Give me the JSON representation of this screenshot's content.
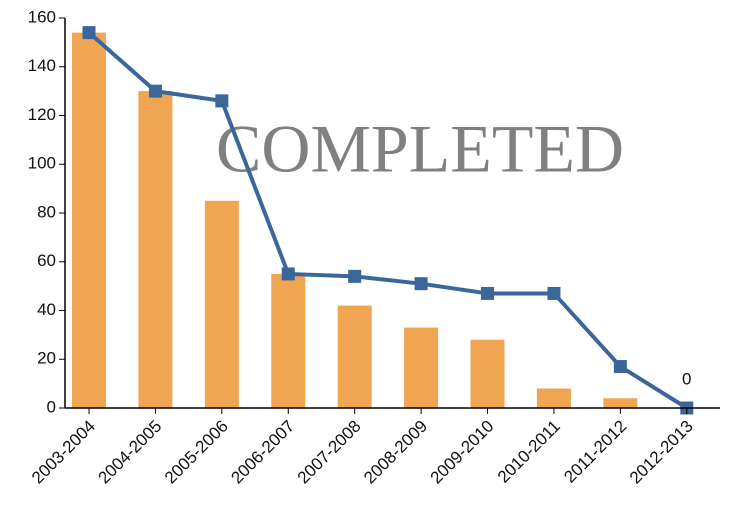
{
  "chart_data": {
    "type": "bar",
    "annotation": "COMPLETED",
    "categories": [
      "2003-2004",
      "2004-2005",
      "2005-2006",
      "2006-2007",
      "2007-2008",
      "2008-2009",
      "2009-2010",
      "2010-2011",
      "2011-2012",
      "2012-2013"
    ],
    "series": [
      {
        "type": "bar",
        "color": "#f0a552",
        "values": [
          154,
          130,
          85,
          55,
          42,
          33,
          28,
          8,
          4,
          0
        ]
      },
      {
        "type": "line",
        "color": "#3b6699",
        "values": [
          154,
          130,
          126,
          55,
          54,
          51,
          47,
          47,
          17,
          0
        ],
        "labeled": [
          9
        ]
      }
    ],
    "ylim": [
      0,
      160
    ],
    "yticks": [
      0,
      20,
      40,
      60,
      80,
      100,
      120,
      140,
      160
    ],
    "grid": false
  }
}
